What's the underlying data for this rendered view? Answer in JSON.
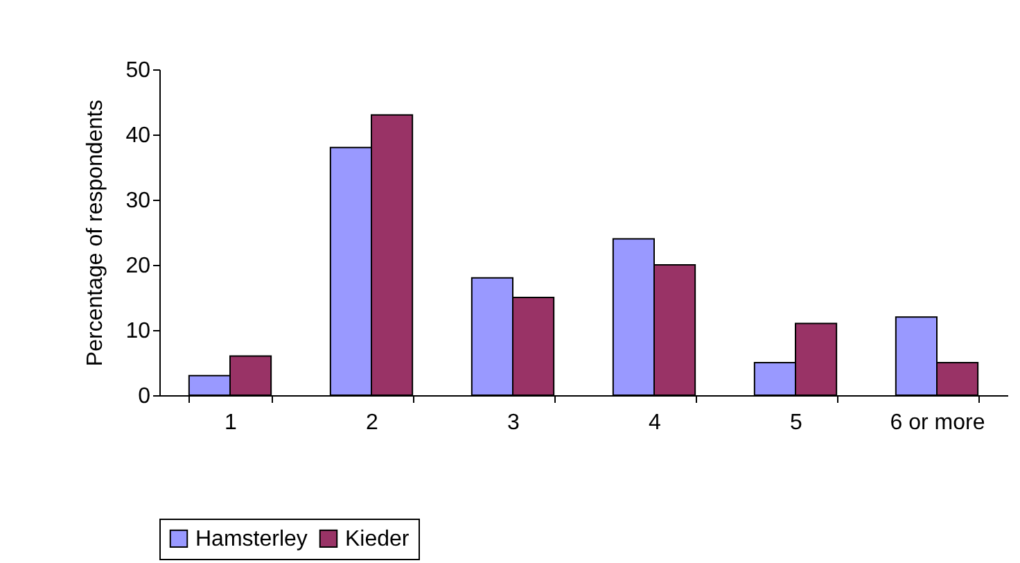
{
  "chart_data": {
    "type": "bar",
    "ylabel": "Percentage of respondents",
    "categories": [
      "1",
      "2",
      "3",
      "4",
      "5",
      "6 or more"
    ],
    "series": [
      {
        "name": "Hamsterley",
        "color": "#9999ff",
        "values": [
          3,
          38,
          18,
          24,
          5,
          12
        ]
      },
      {
        "name": "Kieder",
        "color": "#993366",
        "values": [
          6,
          43,
          15,
          20,
          11,
          5
        ]
      }
    ],
    "ylim": [
      0,
      50
    ],
    "yticks": [
      0,
      10,
      20,
      30,
      40,
      50
    ],
    "grid": false,
    "legend": "bottom"
  }
}
